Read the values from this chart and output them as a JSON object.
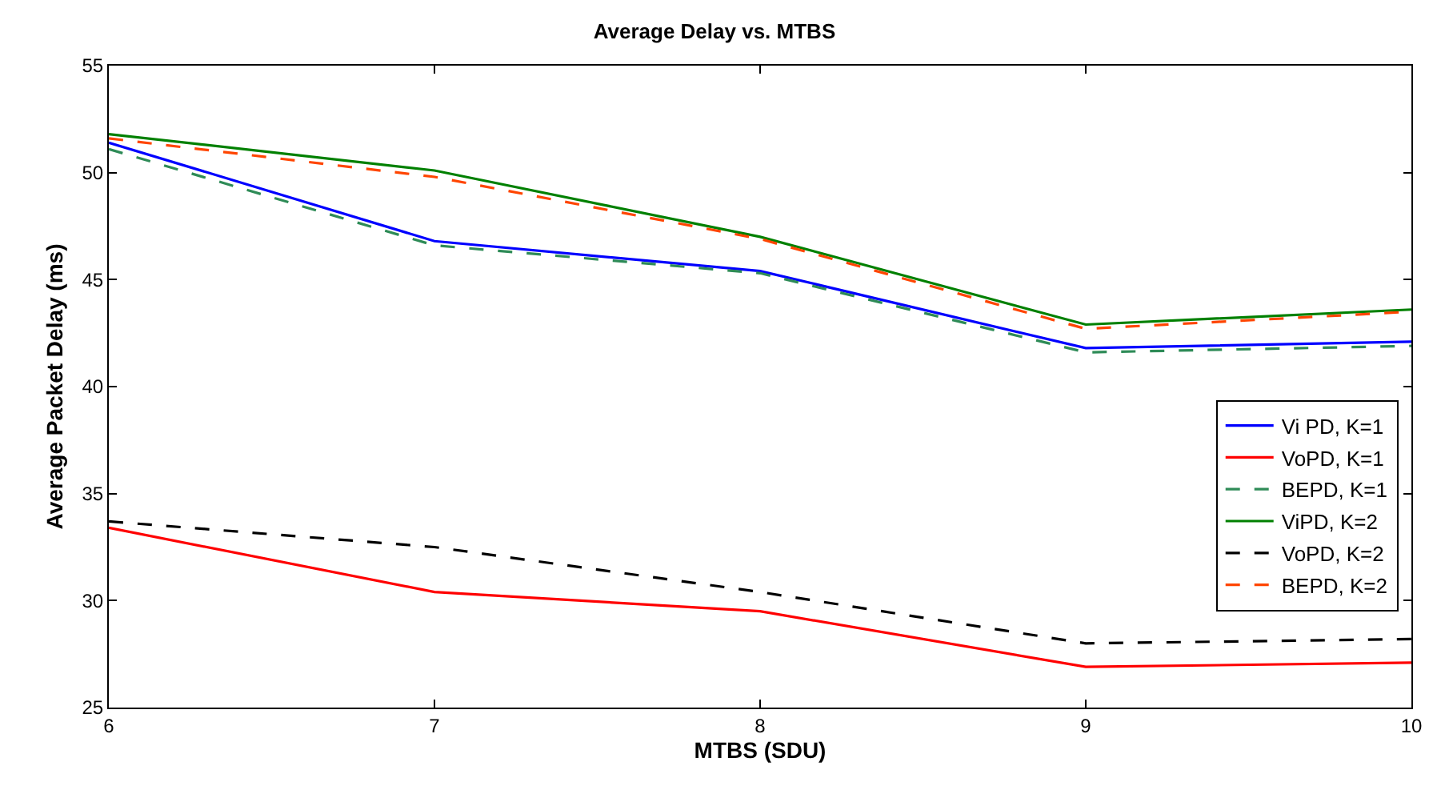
{
  "chart_data": {
    "type": "line",
    "title": "Average Delay vs. MTBS",
    "xlabel": "MTBS (SDU)",
    "ylabel": "Average Packet Delay (ms)",
    "x": [
      6,
      7,
      8,
      9,
      10
    ],
    "xlim": [
      6,
      10
    ],
    "xticks": [
      6,
      7,
      8,
      9,
      10
    ],
    "ylim": [
      25,
      55
    ],
    "yticks": [
      25,
      30,
      35,
      40,
      45,
      50,
      55
    ],
    "grid": false,
    "legend": "bottom right",
    "marker": "none",
    "series": [
      {
        "name": "Vi PD, K=1",
        "color": "#0000ff",
        "line_style": "solid",
        "values": [
          51.4,
          46.8,
          45.4,
          41.8,
          42.1
        ]
      },
      {
        "name": "VoPD, K=1",
        "color": "#ff0000",
        "line_style": "solid",
        "values": [
          33.4,
          30.4,
          29.5,
          26.9,
          27.1
        ]
      },
      {
        "name": "BEPD, K=1",
        "color": "#2e8b57",
        "line_style": "dashed",
        "values": [
          51.1,
          46.6,
          45.3,
          41.6,
          41.9
        ]
      },
      {
        "name": "ViPD, K=2",
        "color": "#008000",
        "line_style": "solid",
        "values": [
          51.8,
          50.1,
          47.0,
          42.9,
          43.6
        ]
      },
      {
        "name": "VoPD, K=2",
        "color": "#000000",
        "line_style": "dashed",
        "values": [
          33.7,
          32.5,
          30.4,
          28.0,
          28.2
        ]
      },
      {
        "name": "BEPD, K=2",
        "color": "#ff4500",
        "line_style": "dashed",
        "values": [
          51.6,
          49.8,
          46.9,
          42.7,
          43.5
        ]
      }
    ]
  }
}
